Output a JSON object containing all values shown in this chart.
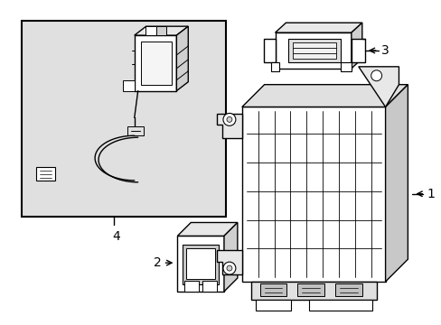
{
  "figsize": [
    4.89,
    3.6
  ],
  "dpi": 100,
  "background_color": "#ffffff",
  "box_bg": "#e2e2e2",
  "line_color": "#000000",
  "lw": 1.0
}
